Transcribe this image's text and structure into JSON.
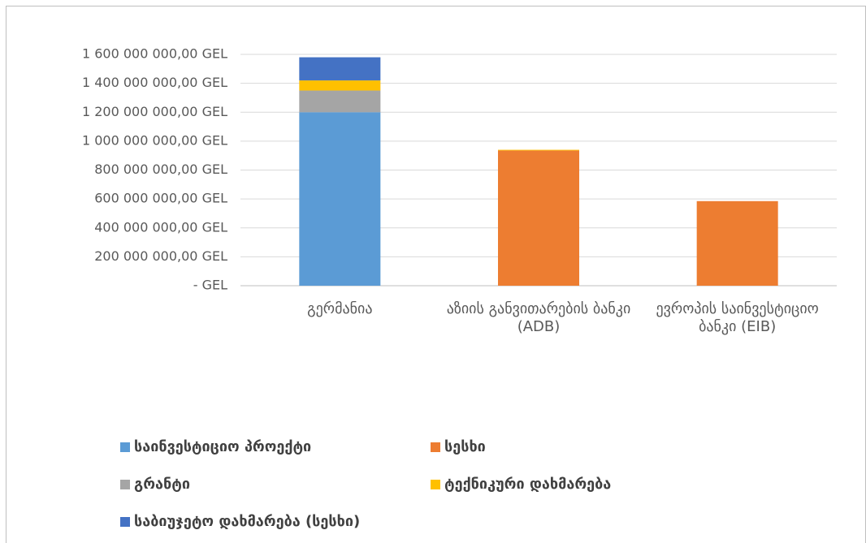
{
  "chart_data": {
    "type": "stacked_bar",
    "categories": [
      "გერმანია",
      "აზიის განვითარების ბანკი (ADB)",
      "ევროპის საინვესტიციო ბანკი (EIB)"
    ],
    "series": [
      {
        "name": "საინვესტიციო პროექტი",
        "color": "#5b9bd5",
        "values": [
          1200000000,
          0,
          0
        ]
      },
      {
        "name": "სესხი",
        "color": "#ed7d31",
        "values": [
          0,
          935000000,
          585000000
        ]
      },
      {
        "name": "გრანტი",
        "color": "#a5a5a5",
        "values": [
          150000000,
          0,
          0
        ]
      },
      {
        "name": "ტექნიკური დახმარება",
        "color": "#ffc000",
        "values": [
          70000000,
          5000000,
          0
        ]
      },
      {
        "name": "საბიუჯეტო დახმარება (სესხი)",
        "color": "#4472c4",
        "values": [
          160000000,
          0,
          0
        ]
      }
    ],
    "ylim": [
      0,
      1600000000
    ],
    "yticks": [
      {
        "value": 0,
        "label": "-   GEL"
      },
      {
        "value": 200000000,
        "label": "200 000 000,00 GEL"
      },
      {
        "value": 400000000,
        "label": "400 000 000,00 GEL"
      },
      {
        "value": 600000000,
        "label": "600 000 000,00 GEL"
      },
      {
        "value": 800000000,
        "label": "800 000 000,00 GEL"
      },
      {
        "value": 1000000000,
        "label": "1 000 000 000,00 GEL"
      },
      {
        "value": 1200000000,
        "label": "1 200 000 000,00 GEL"
      },
      {
        "value": 1400000000,
        "label": "1 400 000 000,00 GEL"
      },
      {
        "value": 1600000000,
        "label": "1 600 000 000,00 GEL"
      }
    ],
    "grid": true,
    "legend": "bottom"
  }
}
